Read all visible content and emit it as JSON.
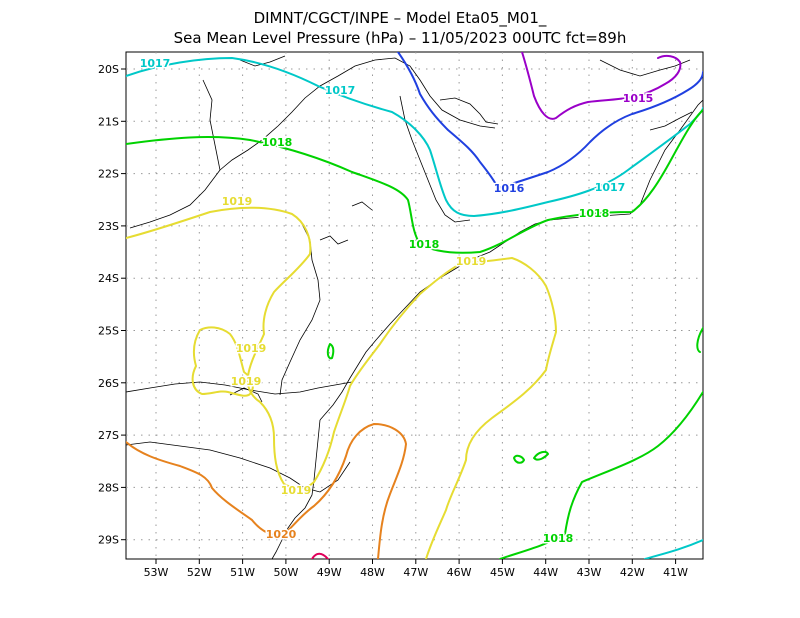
{
  "title": {
    "line1": "DIMNT/CGCT/INPE –  Model Eta05_M01_",
    "line2": "Sea Mean Level Pressure (hPa) – 11/05/2023 00UTC fct=89h"
  },
  "axes": {
    "longitude_labels": [
      "53W",
      "52W",
      "51W",
      "50W",
      "49W",
      "48W",
      "47W",
      "46W",
      "45W",
      "44W",
      "43W",
      "42W",
      "41W"
    ],
    "latitude_labels": [
      "20S",
      "21S",
      "22S",
      "23S",
      "24S",
      "25S",
      "26S",
      "27S",
      "28S",
      "29S"
    ]
  },
  "isobars": {
    "colors": {
      "1015": "#9a00c8",
      "1016": "#2040e0",
      "1017": "#00c8c8",
      "1018": "#00d200",
      "1019": "#e6dc32",
      "1020": "#e6821e",
      "1021": "#e0005a"
    },
    "labels": [
      "1015",
      "1016",
      "1017",
      "1017",
      "1017",
      "1018",
      "1018",
      "1018",
      "1018",
      "1019",
      "1019",
      "1019",
      "1019",
      "1019",
      "1020"
    ]
  }
}
